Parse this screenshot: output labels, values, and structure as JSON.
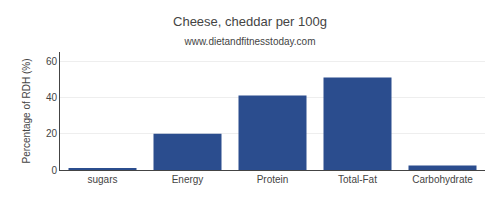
{
  "chart_data": {
    "type": "bar",
    "title": "Cheese, cheddar per 100g",
    "subtitle": "www.dietandfitnesstoday.com",
    "categories": [
      "sugars",
      "Energy",
      "Protein",
      "Total-Fat",
      "Carbohydrate"
    ],
    "values": [
      1,
      20,
      41,
      51,
      2.5
    ],
    "color": "#2b4d8e",
    "ylabel": "Percentage of RDH (%)",
    "ylim": [
      0,
      65
    ],
    "yticks": [
      0,
      20,
      40,
      60
    ],
    "grid": true
  }
}
